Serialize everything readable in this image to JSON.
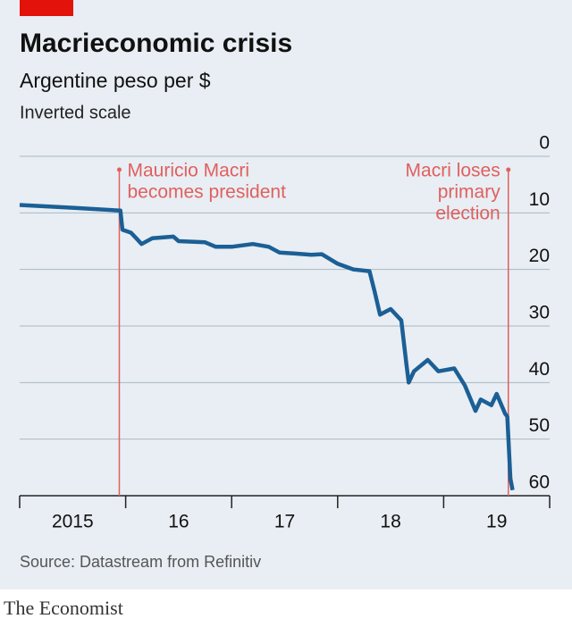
{
  "chart_data": {
    "type": "line",
    "title": "Macrieconomic crisis",
    "subtitle": "Argentine peso per $",
    "note": "Inverted scale",
    "source": "Source: Datastream from Refinitiv",
    "brand": "The Economist",
    "x": [
      2015.0,
      2015.5,
      2015.95,
      2015.97,
      2016.05,
      2016.1,
      2016.15,
      2016.25,
      2016.45,
      2016.5,
      2016.75,
      2016.85,
      2017.0,
      2017.2,
      2017.35,
      2017.45,
      2017.6,
      2017.75,
      2017.85,
      2018.0,
      2018.15,
      2018.3,
      2018.35,
      2018.4,
      2018.5,
      2018.6,
      2018.65,
      2018.67,
      2018.72,
      2018.85,
      2018.95,
      2019.1,
      2019.2,
      2019.3,
      2019.35,
      2019.45,
      2019.5,
      2019.58,
      2019.6,
      2019.63,
      2019.65
    ],
    "series": [
      {
        "name": "Argentine peso per $",
        "color": "#1b5f96",
        "values": [
          8.6,
          9.1,
          9.6,
          13,
          13.5,
          14.5,
          15.5,
          14.5,
          14.2,
          15,
          15.2,
          16,
          16,
          15.5,
          16,
          17,
          17.2,
          17.4,
          17.3,
          19,
          20,
          20.3,
          24,
          28,
          27,
          29,
          37,
          40,
          38,
          36,
          38,
          37.5,
          40.5,
          45,
          43,
          44,
          42,
          45.5,
          46,
          57,
          59
        ]
      }
    ],
    "xlim": [
      2015,
      2020
    ],
    "xticks": [
      {
        "value": 2015,
        "label": "2015"
      },
      {
        "value": 2016,
        "label": "16"
      },
      {
        "value": 2017,
        "label": "17"
      },
      {
        "value": 2018,
        "label": "18"
      },
      {
        "value": 2019,
        "label": "19"
      }
    ],
    "ylim": [
      0,
      60
    ],
    "yticks": [
      0,
      10,
      20,
      30,
      40,
      50,
      60
    ],
    "inverted": true,
    "grid": true,
    "annotations": [
      {
        "x": 2015.94,
        "text": [
          "Mauricio Macri",
          "becomes president"
        ],
        "side": "right",
        "color": "#e0605f"
      },
      {
        "x": 2019.61,
        "text": [
          "Macri loses",
          "primary",
          "election"
        ],
        "side": "left",
        "color": "#e0605f"
      }
    ]
  }
}
